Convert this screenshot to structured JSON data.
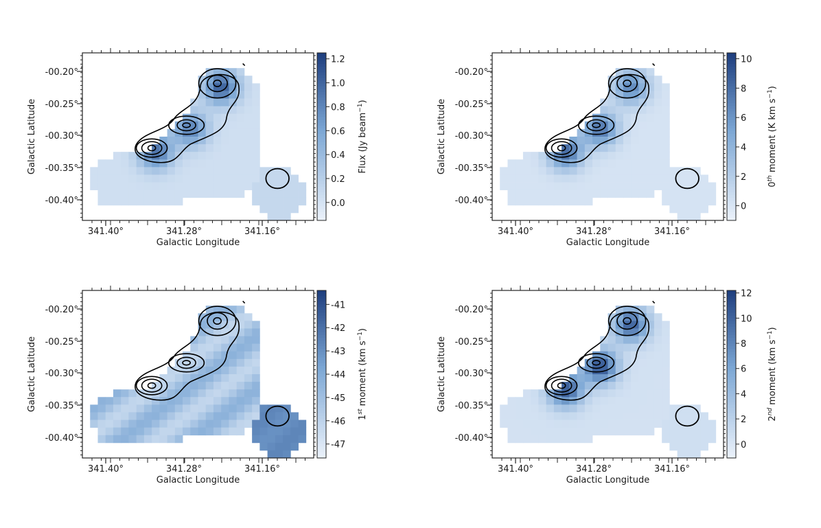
{
  "chart_data": [
    {
      "type": "heatmap",
      "name": "flux",
      "xlabel": "Galactic Longitude",
      "ylabel": "Galactic Latitude",
      "x_ticks": [
        "341.40°",
        "341.28°",
        "341.16°"
      ],
      "y_ticks": [
        "-00.20°",
        "-00.25°",
        "-00.30°",
        "-00.35°",
        "-00.40°"
      ],
      "y_tick_annotations": [
        "°",
        "°",
        "°",
        "°",
        "°"
      ],
      "colorbar": {
        "label_parts": [
          "Flux (Jy beam",
          "−1",
          ")"
        ],
        "ticks": [
          "1.2",
          "1.0",
          "0.8",
          "0.6",
          "0.4",
          "0.2",
          "0.0"
        ],
        "range": [
          -0.15,
          1.25
        ],
        "tick_values": [
          1.2,
          1.0,
          0.8,
          0.6,
          0.4,
          0.2,
          0.0
        ]
      },
      "field": {
        "base": 0.05,
        "base_small": 0.12,
        "peaks": [
          1.0,
          0.8,
          0.9
        ],
        "gradient": 0.0
      }
    },
    {
      "type": "heatmap",
      "name": "moment0",
      "xlabel": "Galactic Longitude",
      "ylabel": "Galactic Latitude",
      "x_ticks": [
        "341.40°",
        "341.28°",
        "341.16°"
      ],
      "y_ticks": [
        "-00.20°",
        "-00.25°",
        "-00.30°",
        "-00.35°",
        "-00.40°"
      ],
      "y_tick_annotations": [
        "",
        "",
        "",
        "",
        ""
      ],
      "colorbar": {
        "label_parts": [
          "0",
          "th",
          " moment (K km s",
          "−1",
          ")"
        ],
        "ticks": [
          "10",
          "8",
          "6",
          "4",
          "2",
          "0"
        ],
        "range": [
          -1,
          10.4
        ],
        "tick_values": [
          10,
          8,
          6,
          4,
          2,
          0
        ]
      },
      "field": {
        "base": 0.3,
        "base_small": 0.3,
        "peaks": [
          6.5,
          7.5,
          8.0
        ],
        "gradient": 0.0
      }
    },
    {
      "type": "heatmap",
      "name": "moment1",
      "xlabel": "Galactic Longitude",
      "ylabel": "Galactic Latitude",
      "x_ticks": [
        "341.40°",
        "341.28°",
        "341.16°"
      ],
      "y_ticks": [
        "-00.20°",
        "-00.25°",
        "-00.30°",
        "-00.35°",
        "-00.40°"
      ],
      "y_tick_annotations": [
        "",
        "",
        "",
        "",
        ""
      ],
      "colorbar": {
        "label_parts": [
          "1",
          "st",
          " moment (km s",
          "−1",
          ")"
        ],
        "ticks": [
          "-41",
          "-42",
          "-43",
          "-44",
          "-45",
          "-46",
          "-47"
        ],
        "range": [
          -47.6,
          -40.4
        ],
        "tick_values": [
          -41,
          -42,
          -43,
          -44,
          -45,
          -46,
          -47
        ]
      },
      "field": {
        "base": -45.2,
        "base_small": -42.8,
        "peaks": [
          0,
          0,
          0
        ],
        "gradient": 1.6
      }
    },
    {
      "type": "heatmap",
      "name": "moment2",
      "xlabel": "Galactic Longitude",
      "ylabel": "Galactic Latitude",
      "x_ticks": [
        "341.40°",
        "341.28°",
        "341.16°"
      ],
      "y_ticks": [
        "-00.20°",
        "-00.25°",
        "-00.30°",
        "-00.35°",
        "-00.40°"
      ],
      "y_tick_annotations": [
        "",
        "",
        "",
        "",
        ""
      ],
      "colorbar": {
        "label_parts": [
          "2",
          "nd",
          " moment (km s",
          "−1",
          ")"
        ],
        "ticks": [
          "12",
          "10",
          "8",
          "6",
          "4",
          "2",
          "0"
        ],
        "range": [
          -1.1,
          12.2
        ],
        "tick_values": [
          12,
          10,
          8,
          6,
          4,
          2,
          0
        ]
      },
      "field": {
        "base": 0.6,
        "base_small": 0.8,
        "peaks": [
          9.5,
          10.5,
          10.0
        ],
        "gradient": 0.0
      }
    }
  ],
  "colors": {
    "low": "#edf3fb",
    "high": "#1f3f7f",
    "contour": "#000000"
  }
}
